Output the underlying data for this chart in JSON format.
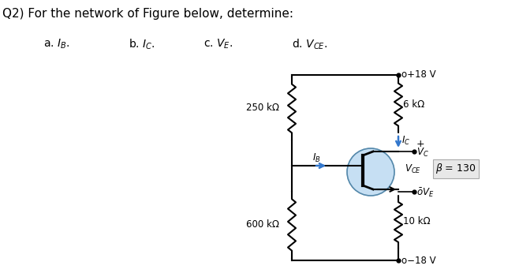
{
  "bg_color": "#ffffff",
  "text_color": "#000000",
  "title": "Q2) For the network of Figure below, determine:",
  "title_fontsize": 11,
  "sub_labels": [
    [
      "a. $I_B$.",
      55,
      48
    ],
    [
      "b. $I_C$.",
      163,
      48
    ],
    [
      "c. $V_E$.",
      258,
      48
    ],
    [
      "d. $V_{CE}$.",
      370,
      48
    ]
  ],
  "vcc": "+18 V",
  "vee": "−18 V",
  "r1_label": "250 kΩ",
  "r2_label": "600 kΩ",
  "rc_label": "6 kΩ",
  "re_label": "10 kΩ",
  "beta_label": "β = 130",
  "ic_label": "$I_C$",
  "ib_label": "$I_B$",
  "vc_label": "$V_C$",
  "ve_label": "$V_E$",
  "vce_label": "$V_{CE}$",
  "transistor_fill": "#b8d8f0",
  "transistor_edge": "#5588aa",
  "arrow_blue": "#3377cc"
}
